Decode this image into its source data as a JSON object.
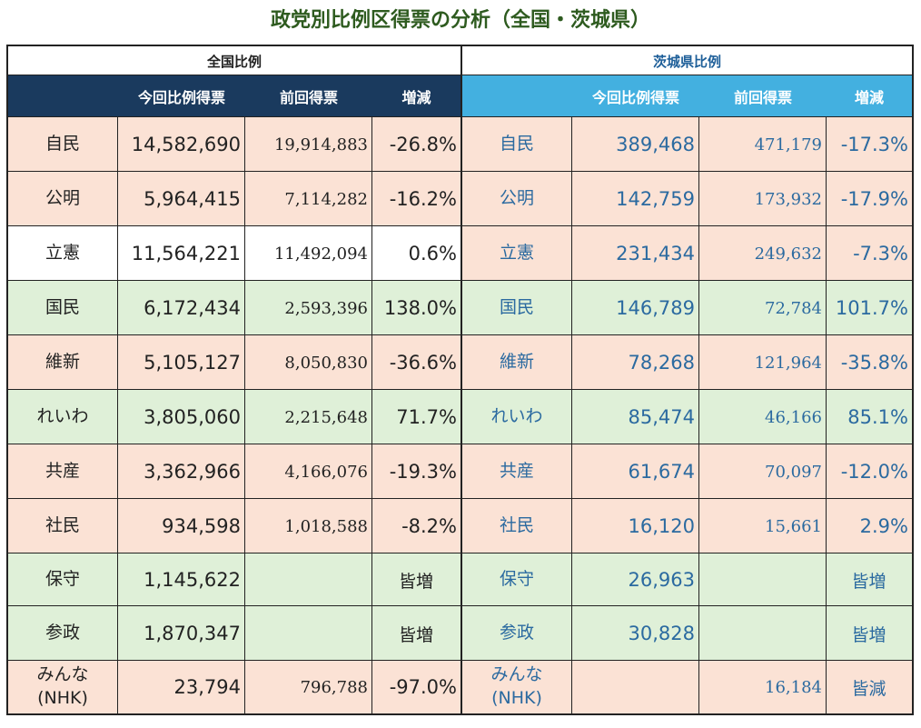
{
  "title": "政党別比例区得票の分析（全国・茨城県）",
  "national_label": "全国比例",
  "ibaraki_label": "茨城県比例",
  "headers": {
    "party": "",
    "current": "今回比例得票",
    "previous": "前回得票",
    "change": "増減"
  },
  "colors": {
    "nat_header": "#1a3a5e",
    "ibr_header": "#43b0e0",
    "pink": "#fbe2d5",
    "green": "#dff0d8",
    "title": "#2e5b1f"
  },
  "rows": [
    {
      "party": "自民",
      "bg": "pink",
      "nat_bg": "pink",
      "nat": {
        "current": "14,582,690",
        "previous": "19,914,883",
        "change": "-26.8%"
      },
      "ibr": {
        "current": "389,468",
        "previous": "471,179",
        "change": "-17.3%"
      }
    },
    {
      "party": "公明",
      "bg": "pink",
      "nat_bg": "pink",
      "nat": {
        "current": "5,964,415",
        "previous": "7,114,282",
        "change": "-16.2%"
      },
      "ibr": {
        "current": "142,759",
        "previous": "173,932",
        "change": "-17.9%"
      }
    },
    {
      "party": "立憲",
      "bg": "pink",
      "nat_bg": "white",
      "nat": {
        "current": "11,564,221",
        "previous": "11,492,094",
        "change": "0.6%"
      },
      "ibr": {
        "current": "231,434",
        "previous": "249,632",
        "change": "-7.3%"
      }
    },
    {
      "party": "国民",
      "bg": "green",
      "nat_bg": "green",
      "nat": {
        "current": "6,172,434",
        "previous": "2,593,396",
        "change": "138.0%"
      },
      "ibr": {
        "current": "146,789",
        "previous": "72,784",
        "change": "101.7%"
      }
    },
    {
      "party": "維新",
      "bg": "pink",
      "nat_bg": "pink",
      "nat": {
        "current": "5,105,127",
        "previous": "8,050,830",
        "change": "-36.6%"
      },
      "ibr": {
        "current": "78,268",
        "previous": "121,964",
        "change": "-35.8%"
      }
    },
    {
      "party": "れいわ",
      "bg": "green",
      "nat_bg": "green",
      "nat": {
        "current": "3,805,060",
        "previous": "2,215,648",
        "change": "71.7%"
      },
      "ibr": {
        "current": "85,474",
        "previous": "46,166",
        "change": "85.1%"
      }
    },
    {
      "party": "共産",
      "bg": "pink",
      "nat_bg": "pink",
      "nat": {
        "current": "3,362,966",
        "previous": "4,166,076",
        "change": "-19.3%"
      },
      "ibr": {
        "current": "61,674",
        "previous": "70,097",
        "change": "-12.0%"
      }
    },
    {
      "party": "社民",
      "bg": "pink",
      "nat_bg": "pink",
      "nat": {
        "current": "934,598",
        "previous": "1,018,588",
        "change": "-8.2%"
      },
      "ibr": {
        "current": "16,120",
        "previous": "15,661",
        "change": "2.9%"
      }
    },
    {
      "party": "保守",
      "bg": "green",
      "nat_bg": "green",
      "nat": {
        "current": "1,145,622",
        "previous": "",
        "change": "皆増"
      },
      "ibr": {
        "current": "26,963",
        "previous": "",
        "change": "皆増"
      }
    },
    {
      "party": "参政",
      "bg": "green",
      "nat_bg": "green",
      "nat": {
        "current": "1,870,347",
        "previous": "",
        "change": "皆増"
      },
      "ibr": {
        "current": "30,828",
        "previous": "",
        "change": "皆増"
      }
    },
    {
      "party": "みんな\n(NHK)",
      "bg": "pink",
      "nat_bg": "pink",
      "nat": {
        "current": "23,794",
        "previous": "796,788",
        "change": "-97.0%"
      },
      "ibr": {
        "current": "",
        "previous": "16,184",
        "change": "皆減"
      }
    }
  ]
}
